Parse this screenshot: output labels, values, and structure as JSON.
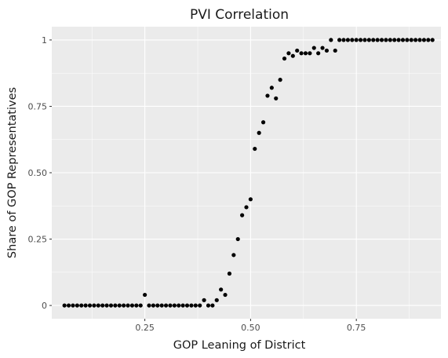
{
  "chart_data": {
    "type": "scatter",
    "title": "PVI Correlation",
    "xlabel": "GOP Leaning of District",
    "ylabel": "Share of GOP Representatives",
    "xlim": [
      0.03,
      0.95
    ],
    "ylim": [
      -0.05,
      1.05
    ],
    "x_ticks": [
      0.25,
      0.5,
      0.75
    ],
    "x_tick_labels": [
      "0.25",
      "0.50",
      "0.75"
    ],
    "x_minor_ticks": [
      0.125,
      0.375,
      0.625,
      0.875
    ],
    "y_ticks": [
      0,
      0.25,
      0.5,
      0.75,
      1
    ],
    "y_tick_labels": [
      "0",
      "0.25",
      "0.50",
      "0.75",
      "1"
    ],
    "y_minor_ticks": [
      0.125,
      0.375,
      0.625,
      0.875
    ],
    "grid": true,
    "point_color": "#000000",
    "panel_color": "#ebebeb",
    "x": [
      0.06,
      0.07,
      0.08,
      0.09,
      0.1,
      0.11,
      0.12,
      0.13,
      0.14,
      0.15,
      0.16,
      0.17,
      0.18,
      0.19,
      0.2,
      0.21,
      0.22,
      0.23,
      0.24,
      0.25,
      0.26,
      0.27,
      0.28,
      0.29,
      0.3,
      0.31,
      0.32,
      0.33,
      0.34,
      0.35,
      0.36,
      0.37,
      0.38,
      0.39,
      0.4,
      0.41,
      0.42,
      0.43,
      0.44,
      0.45,
      0.46,
      0.47,
      0.48,
      0.49,
      0.5,
      0.51,
      0.52,
      0.53,
      0.54,
      0.55,
      0.56,
      0.57,
      0.58,
      0.59,
      0.6,
      0.61,
      0.62,
      0.63,
      0.64,
      0.65,
      0.66,
      0.67,
      0.68,
      0.69,
      0.7,
      0.71,
      0.72,
      0.73,
      0.74,
      0.75,
      0.76,
      0.77,
      0.78,
      0.79,
      0.8,
      0.81,
      0.82,
      0.83,
      0.84,
      0.85,
      0.86,
      0.87,
      0.88,
      0.89,
      0.9,
      0.91,
      0.92,
      0.93
    ],
    "y": [
      0,
      0,
      0,
      0,
      0,
      0,
      0,
      0,
      0,
      0,
      0,
      0,
      0,
      0,
      0,
      0,
      0,
      0,
      0,
      0.04,
      0,
      0,
      0,
      0,
      0,
      0,
      0,
      0,
      0,
      0,
      0,
      0,
      0,
      0.02,
      0,
      0,
      0.02,
      0.06,
      0.04,
      0.12,
      0.19,
      0.25,
      0.34,
      0.37,
      0.4,
      0.59,
      0.65,
      0.69,
      0.79,
      0.82,
      0.78,
      0.85,
      0.93,
      0.95,
      0.94,
      0.96,
      0.95,
      0.95,
      0.95,
      0.97,
      0.95,
      0.97,
      0.96,
      1,
      0.96,
      1,
      1,
      1,
      1,
      1,
      1,
      1,
      1,
      1,
      1,
      1,
      1,
      1,
      1,
      1,
      1,
      1,
      1,
      1,
      1,
      1,
      1,
      1
    ]
  }
}
